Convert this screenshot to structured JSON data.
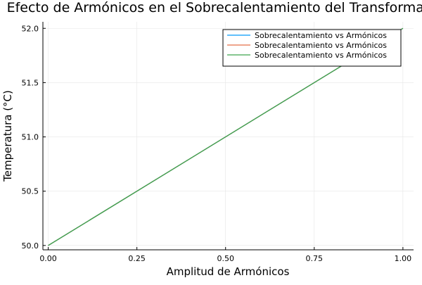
{
  "chart_data": {
    "type": "line",
    "title": "Efecto de Armónicos en el Sobrecalentamiento del Transformador",
    "xlabel": "Amplitud de Armónicos",
    "ylabel": "Temperatura (°C)",
    "xlim": [
      -0.015,
      1.03
    ],
    "ylim": [
      49.96,
      52.06
    ],
    "xticks": [
      0.0,
      0.25,
      0.5,
      0.75,
      1.0
    ],
    "xtick_labels": [
      "0.00",
      "0.25",
      "0.50",
      "0.75",
      "1.00"
    ],
    "yticks": [
      50.0,
      50.5,
      51.0,
      51.5,
      52.0
    ],
    "ytick_labels": [
      "50.0",
      "50.5",
      "51.0",
      "51.5",
      "52.0"
    ],
    "grid": true,
    "legend_position": "top-right",
    "series": [
      {
        "name": "Sobrecalentamiento vs Armónicos",
        "color": "#009AFA",
        "x": [
          0.0,
          1.0
        ],
        "y": [
          50.0,
          52.0
        ]
      },
      {
        "name": "Sobrecalentamiento vs Armónicos",
        "color": "#E36F47",
        "x": [
          0.0,
          1.0
        ],
        "y": [
          50.0,
          52.0
        ]
      },
      {
        "name": "Sobrecalentamiento vs Armónicos",
        "color": "#3EA44E",
        "x": [
          0.0,
          1.0
        ],
        "y": [
          50.0,
          52.0
        ]
      }
    ]
  }
}
